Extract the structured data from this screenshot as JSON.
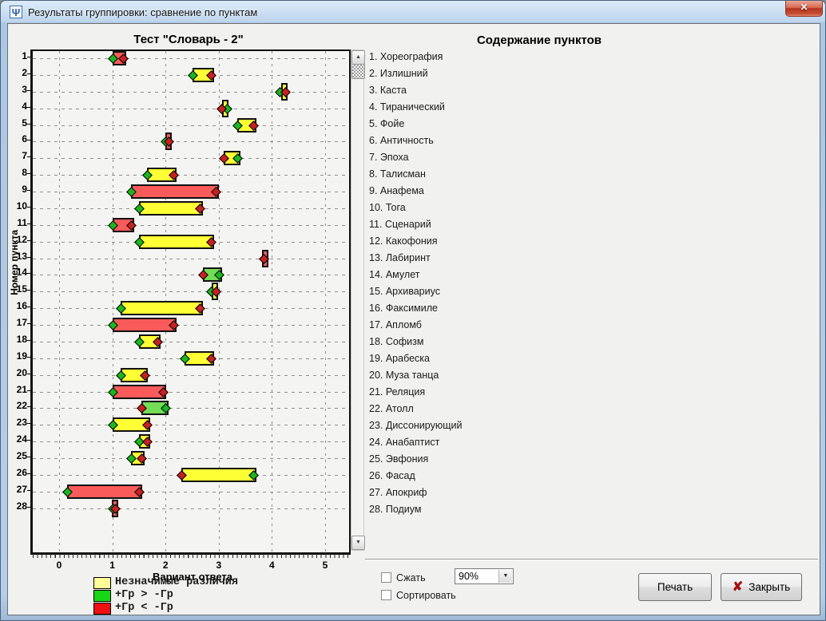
{
  "window": {
    "title": "Результаты группировки: сравнение по пунктам",
    "icon_glyph": "Ψ",
    "close_glyph": "✕"
  },
  "chart_data": {
    "type": "bar",
    "orientation": "horizontal-range",
    "title": "Тест \"Словарь - 2\"",
    "xlabel": "Вариант ответа",
    "ylabel": "Номер пункта",
    "xlim": [
      -0.5,
      5.45
    ],
    "x_ticks": [
      0,
      1,
      2,
      3,
      4,
      5
    ],
    "grid": "dashed",
    "legend_position": "bottom-left",
    "legend": [
      {
        "color": "#ffff99",
        "label": "Незначимые различия",
        "meaning": "nonsignificant difference"
      },
      {
        "color": "#17d517",
        "label": "+Гр > -Гр",
        "meaning": "plus group greater"
      },
      {
        "color": "#ee1111",
        "label": "+Гр < -Гр",
        "meaning": "plus group less"
      }
    ],
    "colors": {
      "none": "#ffff35",
      "plus_greater": "#72dd55",
      "plus_less": "#f95a5a"
    },
    "series_note": "each row: mean answer variant of +Гр group (green diamond) and -Гр group (red diamond); bar spans between them, fill shows significance",
    "items": [
      {
        "n": 1,
        "plus_gr": 1.0,
        "minus_gr": 1.2,
        "significance": "plus_less"
      },
      {
        "n": 2,
        "plus_gr": 2.5,
        "minus_gr": 2.85,
        "significance": "none"
      },
      {
        "n": 3,
        "plus_gr": 4.15,
        "minus_gr": 4.25,
        "significance": "none"
      },
      {
        "n": 4,
        "plus_gr": 3.15,
        "minus_gr": 3.05,
        "significance": "none"
      },
      {
        "n": 5,
        "plus_gr": 3.35,
        "minus_gr": 3.65,
        "significance": "none"
      },
      {
        "n": 6,
        "plus_gr": 2.0,
        "minus_gr": 2.05,
        "significance": "plus_less"
      },
      {
        "n": 7,
        "plus_gr": 3.35,
        "minus_gr": 3.1,
        "significance": "none"
      },
      {
        "n": 8,
        "plus_gr": 1.65,
        "minus_gr": 2.15,
        "significance": "none"
      },
      {
        "n": 9,
        "plus_gr": 1.35,
        "minus_gr": 2.95,
        "significance": "plus_less"
      },
      {
        "n": 10,
        "plus_gr": 1.5,
        "minus_gr": 2.65,
        "significance": "none"
      },
      {
        "n": 11,
        "plus_gr": 1.0,
        "minus_gr": 1.35,
        "significance": "plus_less"
      },
      {
        "n": 12,
        "plus_gr": 1.5,
        "minus_gr": 2.85,
        "significance": "none"
      },
      {
        "n": 13,
        "plus_gr": 3.84,
        "minus_gr": 3.84,
        "significance": "plus_less"
      },
      {
        "n": 14,
        "plus_gr": 3.0,
        "minus_gr": 2.7,
        "significance": "plus_greater"
      },
      {
        "n": 15,
        "plus_gr": 2.85,
        "minus_gr": 2.95,
        "significance": "none"
      },
      {
        "n": 16,
        "plus_gr": 1.15,
        "minus_gr": 2.65,
        "significance": "none"
      },
      {
        "n": 17,
        "plus_gr": 1.0,
        "minus_gr": 2.15,
        "significance": "plus_less"
      },
      {
        "n": 18,
        "plus_gr": 1.5,
        "minus_gr": 1.85,
        "significance": "none"
      },
      {
        "n": 19,
        "plus_gr": 2.35,
        "minus_gr": 2.85,
        "significance": "none"
      },
      {
        "n": 20,
        "plus_gr": 1.15,
        "minus_gr": 1.6,
        "significance": "none"
      },
      {
        "n": 21,
        "plus_gr": 1.0,
        "minus_gr": 1.95,
        "significance": "plus_less"
      },
      {
        "n": 22,
        "plus_gr": 2.0,
        "minus_gr": 1.55,
        "significance": "plus_greater"
      },
      {
        "n": 23,
        "plus_gr": 1.0,
        "minus_gr": 1.65,
        "significance": "none"
      },
      {
        "n": 24,
        "plus_gr": 1.5,
        "minus_gr": 1.65,
        "significance": "none"
      },
      {
        "n": 25,
        "plus_gr": 1.35,
        "minus_gr": 1.55,
        "significance": "none"
      },
      {
        "n": 26,
        "plus_gr": 3.65,
        "minus_gr": 2.3,
        "significance": "none"
      },
      {
        "n": 27,
        "plus_gr": 0.15,
        "minus_gr": 1.5,
        "significance": "plus_less"
      },
      {
        "n": 28,
        "plus_gr": 1.0,
        "minus_gr": 1.05,
        "significance": "plus_less"
      }
    ]
  },
  "items_panel": {
    "title": "Содержание пунктов",
    "items": [
      "1. Хореография",
      "2. Излишний",
      "3. Каста",
      "4. Тиранический",
      "5. Фойе",
      "6. Античность",
      "7. Эпоха",
      "8. Талисман",
      "9. Анафема",
      "10. Тога",
      "11. Сценарий",
      "12. Какофония",
      "13. Лабиринт",
      "14. Амулет",
      "15. Архивариус",
      "16. Факсимиле",
      "17. Апломб",
      "18. Софизм",
      "19. Арабеска",
      "20. Муза танца",
      "21. Реляция",
      "22. Атолл",
      "23. Диссонирующий",
      "24. Анабаптист",
      "25. Эвфония",
      "26. Фасад",
      "27. Апокриф",
      "28. Подиум"
    ]
  },
  "scrollbar": {
    "up_glyph": "▲",
    "down_glyph": "▼"
  },
  "controls": {
    "compress_label": "Сжать",
    "compress_checked": false,
    "sort_label": "Сортировать",
    "sort_checked": false,
    "zoom_value": "90%",
    "combo_arrow_glyph": "▼",
    "print_label": "Печать",
    "close_label": "Закрыть",
    "close_icon_glyph": "✘"
  }
}
